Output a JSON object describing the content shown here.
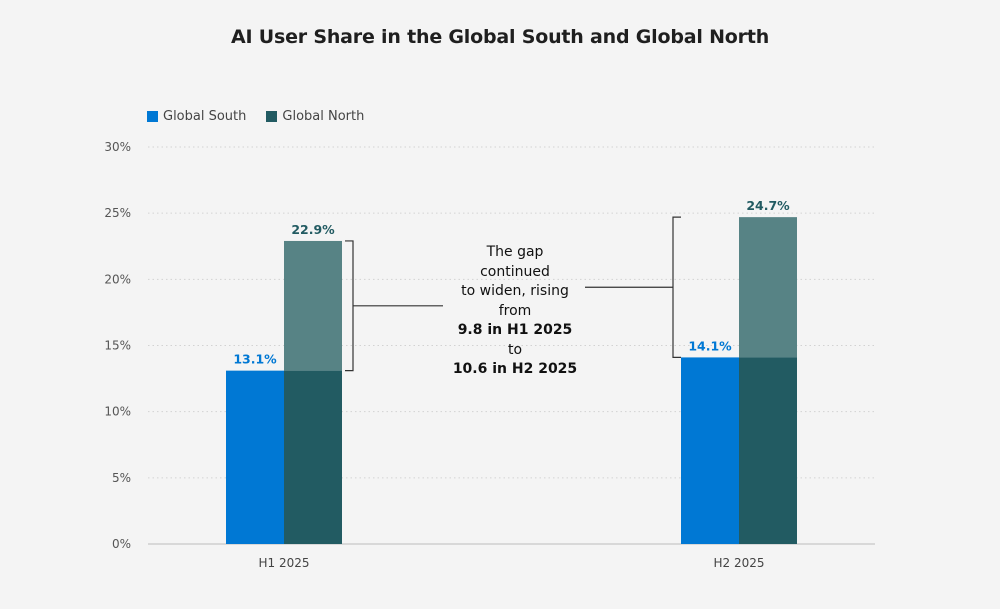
{
  "chart_data": {
    "type": "bar",
    "title": "AI User Share in the Global South and Global North",
    "categories": [
      "H1 2025",
      "H2 2025"
    ],
    "series": [
      {
        "name": "Global South",
        "values": [
          13.1,
          14.1
        ],
        "color": "#0078d4",
        "labels": [
          "13.1%",
          "14.1%"
        ]
      },
      {
        "name": "Global North",
        "values": [
          22.9,
          24.7
        ],
        "color": "#225b62",
        "overlay_color": "#578385",
        "labels": [
          "22.9%",
          "24.7%"
        ]
      }
    ],
    "ylim": [
      0,
      30
    ],
    "yticks": [
      0,
      5,
      10,
      15,
      20,
      25,
      30
    ],
    "ytick_labels": [
      "0%",
      "5%",
      "10%",
      "15%",
      "20%",
      "25%",
      "30%"
    ],
    "xlabel": "",
    "ylabel": "",
    "grid": true,
    "legend_position": "top-left",
    "annotation": {
      "lines": [
        "The gap",
        "continued",
        "to widen, rising",
        "from"
      ],
      "bold1": "9.8 in H1 2025",
      "middle": "to",
      "bold2": "10.6 in H2 2025"
    }
  }
}
